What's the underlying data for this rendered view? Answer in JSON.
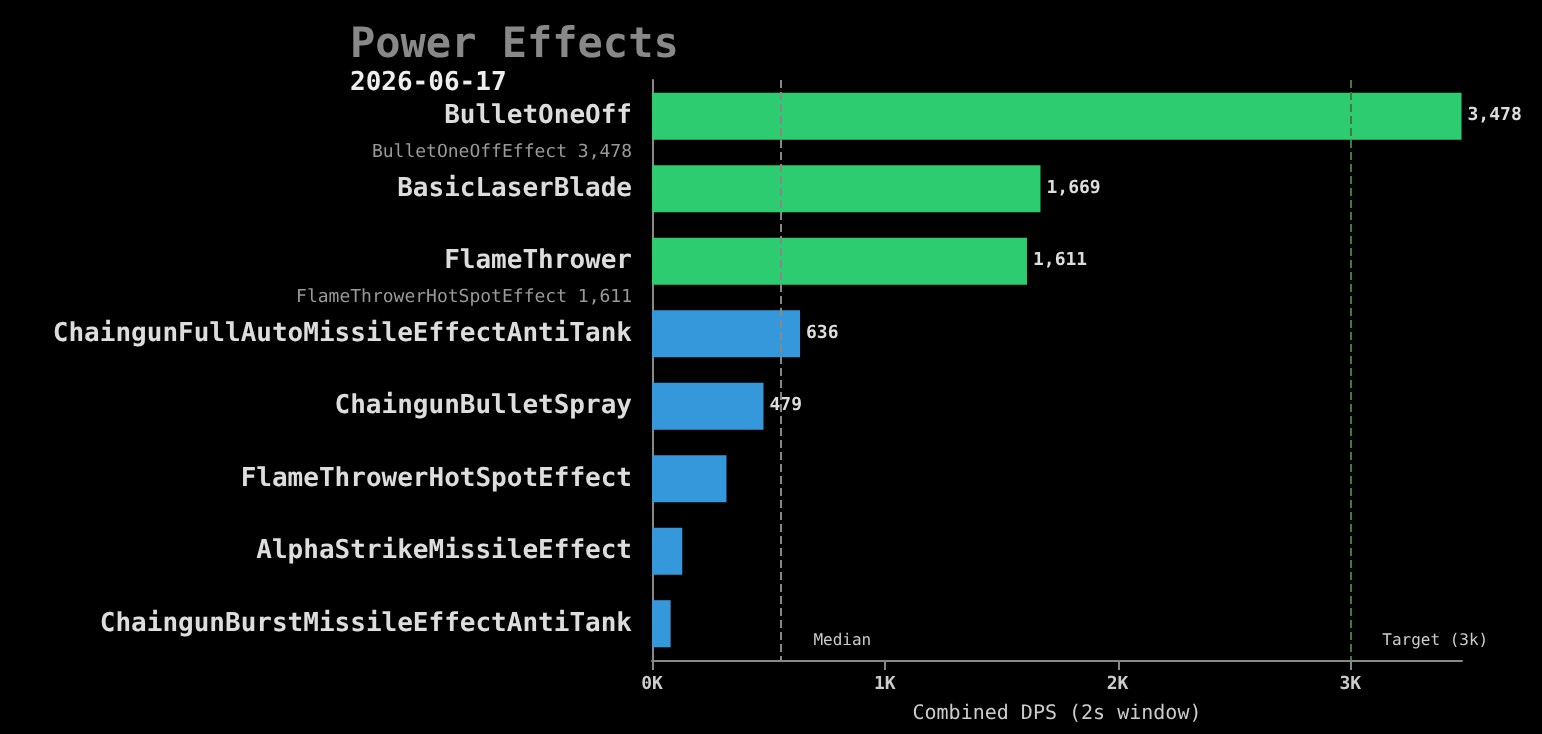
{
  "chart_data": {
    "type": "bar",
    "orientation": "horizontal",
    "title": "Power Effects",
    "subtitle": "2026-06-17",
    "xlabel": "Combined DPS (2s window)",
    "categories": [
      "BulletOneOff",
      "BasicLaserBlade",
      "FlameThrower",
      "ChaingunFullAutoMissileEffectAntiTank",
      "ChaingunBulletSpray",
      "FlameThrowerHotSpotEffect",
      "AlphaStrikeMissileEffect",
      "ChaingunBurstMissileEffectAntiTank"
    ],
    "values": [
      3478,
      1669,
      1611,
      636,
      479,
      320,
      130,
      80
    ],
    "colors": [
      "#2ecc71",
      "#2ecc71",
      "#2ecc71",
      "#3498db",
      "#3498db",
      "#3498db",
      "#3498db",
      "#3498db"
    ],
    "value_labels": [
      "3,478",
      "1,669",
      "1,611",
      "636",
      "479",
      null,
      null,
      null
    ],
    "xlim": [
      0,
      3480
    ],
    "xticks": [
      {
        "value": 0,
        "label": "0K"
      },
      {
        "value": 1000,
        "label": "1K"
      },
      {
        "value": 2000,
        "label": "2K"
      },
      {
        "value": 3000,
        "label": "3K"
      }
    ],
    "ref_lines": [
      {
        "axis": "x",
        "value": 556,
        "label": "Median",
        "color": "#888888",
        "line_style": "dashed"
      },
      {
        "axis": "x",
        "value": 3000,
        "label": "Target (3k)",
        "color": "#3f7a3f",
        "line_style": "dashed"
      }
    ],
    "annotations": [
      "BulletOneOffEffect 3,478",
      "FlameThrowerHotSpotEffect 1,611"
    ],
    "legend": "bottom right",
    "grid": false
  }
}
